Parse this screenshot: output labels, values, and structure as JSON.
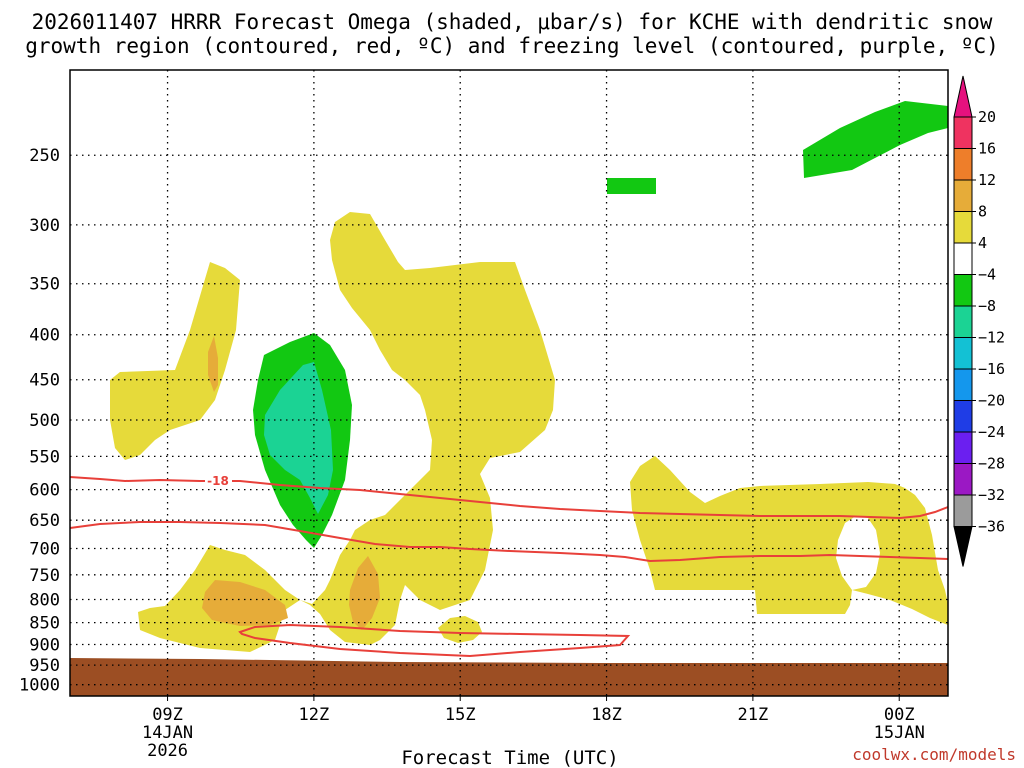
{
  "title_line1": "2026011407 HRRR Forecast Omega (shaded, μbar/s) for KCHE with dendritic snow",
  "title_line2": "growth region (contoured, red, ºC) and freezing level (contoured, purple, ºC)",
  "xlabel": "Forecast Time (UTC)",
  "credit": "coolwx.com/models",
  "chart_data": {
    "type": "time-height contour",
    "x_ticks": [
      {
        "h": 9,
        "lines": [
          "09Z",
          "14JAN",
          "2026"
        ]
      },
      {
        "h": 12,
        "lines": [
          "12Z"
        ]
      },
      {
        "h": 15,
        "lines": [
          "15Z"
        ]
      },
      {
        "h": 18,
        "lines": [
          "18Z"
        ]
      },
      {
        "h": 21,
        "lines": [
          "21Z"
        ]
      },
      {
        "h": 24,
        "lines": [
          "00Z",
          "15JAN"
        ]
      }
    ],
    "x_range": [
      7,
      25
    ],
    "y_ticks": [
      250,
      300,
      350,
      400,
      450,
      500,
      550,
      600,
      650,
      700,
      750,
      800,
      850,
      900,
      950,
      1000
    ],
    "y_range_hPa": [
      200,
      1030
    ],
    "colorbar_labels": [
      "20",
      "16",
      "12",
      "8",
      "4",
      "−4",
      "−8",
      "−12",
      "−16",
      "−20",
      "−24",
      "−28",
      "−32",
      "−36"
    ],
    "colorbar_colors": [
      "#ef3360",
      "#ee7e2a",
      "#e6ac39",
      "#e6da3a",
      "#ffffff",
      "#12c812",
      "#1bd394",
      "#13c1d4",
      "#1497ed",
      "#1f3de6",
      "#6b1ff0",
      "#9b18c4",
      "#9b9b9b"
    ],
    "contour_label": "-18",
    "colors": {
      "yellow": "#e6da3a",
      "orange": "#e6ac39",
      "green": "#12c812",
      "teal": "#1bd394",
      "red_contour": "#e8403a",
      "ground": "#9c4e23"
    }
  }
}
